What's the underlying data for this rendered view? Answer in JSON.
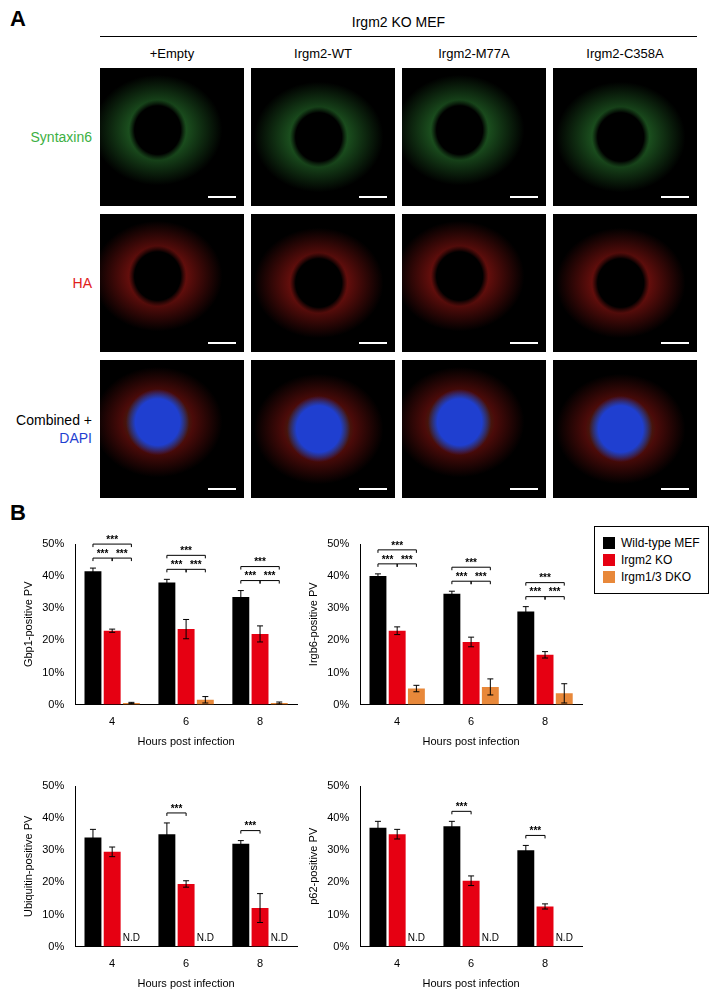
{
  "panel_a": {
    "label": "A",
    "header": "Irgm2 KO MEF",
    "columns": [
      "+Empty",
      "Irgm2-WT",
      "Irgm2-M77A",
      "Irgm2-C358A"
    ],
    "rows": [
      {
        "label": [
          "Syntaxin6"
        ],
        "colors": [
          "#3cb043"
        ]
      },
      {
        "label": [
          "HA"
        ],
        "colors": [
          "#e0201b"
        ]
      },
      {
        "label": [
          "Combined +",
          "DAPI"
        ],
        "colors": [
          "#000000",
          "#1f3fd0"
        ]
      }
    ]
  },
  "panel_b_label": "B",
  "chart_data": [
    {
      "type": "bar",
      "y_label": "Gbp1-positive PV",
      "x_label": "Hours post infection",
      "categories": [
        "4",
        "6",
        "8"
      ],
      "ylim": [
        0,
        50
      ],
      "yticks": [
        {
          "value": 0,
          "label": "0%"
        },
        {
          "value": 10,
          "label": "10%"
        },
        {
          "value": 20,
          "label": "20%"
        },
        {
          "value": 30,
          "label": "30%"
        },
        {
          "value": 40,
          "label": "40%"
        },
        {
          "value": 50,
          "label": "50%"
        }
      ],
      "grid": false,
      "series": [
        {
          "name": "Wild-type MEF",
          "color": "#000000",
          "values": [
            41.5,
            38,
            33.5
          ],
          "errors": [
            1,
            1,
            2
          ]
        },
        {
          "name": "Irgm2 KO",
          "color": "#e60012",
          "values": [
            23,
            23.5,
            22
          ],
          "errors": [
            0.5,
            3,
            2.5
          ]
        },
        {
          "name": "Irgm1/3 DKO",
          "color": "#e8883a",
          "values": [
            0.5,
            1.5,
            0.5
          ],
          "errors": [
            0.2,
            1,
            0.3
          ]
        }
      ],
      "significance": [
        {
          "category": "4",
          "from": "Wild-type MEF",
          "to": "Irgm1/3 DKO",
          "label": "***"
        },
        {
          "category": "4",
          "from": "Wild-type MEF",
          "to": "Irgm2 KO",
          "label": "***"
        },
        {
          "category": "4",
          "from": "Irgm2 KO",
          "to": "Irgm1/3 DKO",
          "label": "***"
        },
        {
          "category": "6",
          "from": "Wild-type MEF",
          "to": "Irgm1/3 DKO",
          "label": "***"
        },
        {
          "category": "6",
          "from": "Wild-type MEF",
          "to": "Irgm2 KO",
          "label": "***"
        },
        {
          "category": "6",
          "from": "Irgm2 KO",
          "to": "Irgm1/3 DKO",
          "label": "***"
        },
        {
          "category": "8",
          "from": "Wild-type MEF",
          "to": "Irgm1/3 DKO",
          "label": "***"
        },
        {
          "category": "8",
          "from": "Wild-type MEF",
          "to": "Irgm2 KO",
          "label": "***"
        },
        {
          "category": "8",
          "from": "Irgm2 KO",
          "to": "Irgm1/3 DKO",
          "label": "***"
        }
      ]
    },
    {
      "type": "bar",
      "y_label": "Irgb6-positive PV",
      "x_label": "Hours post infection",
      "categories": [
        "4",
        "6",
        "8"
      ],
      "ylim": [
        0,
        50
      ],
      "yticks": [
        {
          "value": 0,
          "label": "0%"
        },
        {
          "value": 10,
          "label": "10%"
        },
        {
          "value": 20,
          "label": "20%"
        },
        {
          "value": 30,
          "label": "30%"
        },
        {
          "value": 40,
          "label": "40%"
        },
        {
          "value": 50,
          "label": "50%"
        }
      ],
      "grid": false,
      "legend": "right",
      "series": [
        {
          "name": "Wild-type MEF",
          "color": "#000000",
          "values": [
            40,
            34.5,
            29
          ],
          "errors": [
            0.7,
            0.8,
            1.5
          ]
        },
        {
          "name": "Irgm2 KO",
          "color": "#e60012",
          "values": [
            23,
            19.5,
            15.5
          ],
          "errors": [
            1.2,
            1.5,
            1
          ]
        },
        {
          "name": "Irgm1/3 DKO",
          "color": "#e8883a",
          "values": [
            5,
            5.5,
            3.5
          ],
          "errors": [
            1,
            2.5,
            3
          ]
        }
      ],
      "significance": [
        {
          "category": "4",
          "from": "Wild-type MEF",
          "to": "Irgm1/3 DKO",
          "label": "***"
        },
        {
          "category": "4",
          "from": "Wild-type MEF",
          "to": "Irgm2 KO",
          "label": "***"
        },
        {
          "category": "4",
          "from": "Irgm2 KO",
          "to": "Irgm1/3 DKO",
          "label": "***"
        },
        {
          "category": "6",
          "from": "Wild-type MEF",
          "to": "Irgm1/3 DKO",
          "label": "***"
        },
        {
          "category": "6",
          "from": "Wild-type MEF",
          "to": "Irgm2 KO",
          "label": "***"
        },
        {
          "category": "6",
          "from": "Irgm2 KO",
          "to": "Irgm1/3 DKO",
          "label": "***"
        },
        {
          "category": "8",
          "from": "Wild-type MEF",
          "to": "Irgm1/3 DKO",
          "label": "***"
        },
        {
          "category": "8",
          "from": "Wild-type MEF",
          "to": "Irgm2 KO",
          "label": "***"
        },
        {
          "category": "8",
          "from": "Irgm2 KO",
          "to": "Irgm1/3 DKO",
          "label": "***"
        }
      ]
    },
    {
      "type": "bar",
      "y_label": "Ubiquitin-positive PV",
      "x_label": "Hours post infection",
      "categories": [
        "4",
        "6",
        "8"
      ],
      "ylim": [
        0,
        50
      ],
      "yticks": [
        {
          "value": 0,
          "label": "0%"
        },
        {
          "value": 10,
          "label": "10%"
        },
        {
          "value": 20,
          "label": "20%"
        },
        {
          "value": 30,
          "label": "30%"
        },
        {
          "value": 40,
          "label": "40%"
        },
        {
          "value": 50,
          "label": "50%"
        }
      ],
      "grid": false,
      "series": [
        {
          "name": "Wild-type MEF",
          "color": "#000000",
          "values": [
            34,
            35,
            32
          ],
          "errors": [
            2.5,
            3.5,
            1
          ]
        },
        {
          "name": "Irgm2 KO",
          "color": "#e60012",
          "values": [
            29.5,
            19.5,
            12
          ],
          "errors": [
            1.5,
            1,
            4.5
          ]
        },
        {
          "name": "Irgm1/3 DKO",
          "color": "#e8883a",
          "values": [
            null,
            null,
            null
          ],
          "value_labels": [
            "N.D",
            "N.D",
            "N.D"
          ]
        }
      ],
      "significance": [
        {
          "category": "6",
          "from": "Wild-type MEF",
          "to": "Irgm2 KO",
          "label": "***"
        },
        {
          "category": "8",
          "from": "Wild-type MEF",
          "to": "Irgm2 KO",
          "label": "***"
        }
      ]
    },
    {
      "type": "bar",
      "y_label": "p62-positive PV",
      "x_label": "Hours post infection",
      "categories": [
        "4",
        "6",
        "8"
      ],
      "ylim": [
        0,
        50
      ],
      "yticks": [
        {
          "value": 0,
          "label": "0%"
        },
        {
          "value": 10,
          "label": "10%"
        },
        {
          "value": 20,
          "label": "20%"
        },
        {
          "value": 30,
          "label": "30%"
        },
        {
          "value": 40,
          "label": "40%"
        },
        {
          "value": 50,
          "label": "50%"
        }
      ],
      "grid": false,
      "series": [
        {
          "name": "Wild-type MEF",
          "color": "#000000",
          "values": [
            37,
            37.5,
            30
          ],
          "errors": [
            2,
            1.5,
            1.5
          ]
        },
        {
          "name": "Irgm2 KO",
          "color": "#e60012",
          "values": [
            35,
            20.5,
            12.5
          ],
          "errors": [
            1.5,
            1.5,
            0.8
          ]
        },
        {
          "name": "Irgm1/3 DKO",
          "color": "#e8883a",
          "values": [
            null,
            null,
            null
          ],
          "value_labels": [
            "N.D",
            "N.D",
            "N.D"
          ]
        }
      ],
      "significance": [
        {
          "category": "6",
          "from": "Wild-type MEF",
          "to": "Irgm2 KO",
          "label": "***"
        },
        {
          "category": "8",
          "from": "Wild-type MEF",
          "to": "Irgm2 KO",
          "label": "***"
        }
      ]
    }
  ]
}
